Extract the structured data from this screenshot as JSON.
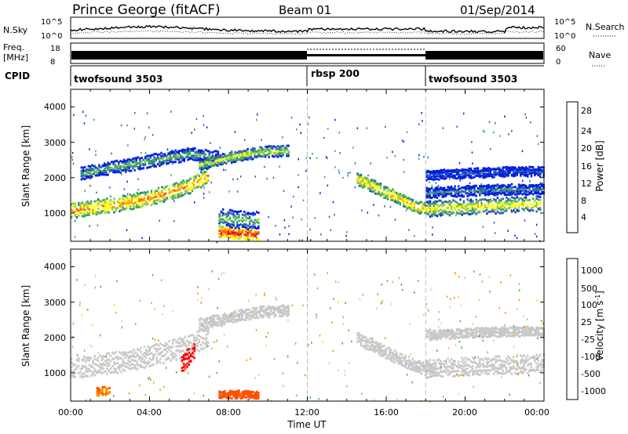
{
  "header": {
    "station": "Prince George (fitACF)",
    "beam": "Beam 01",
    "date": "01/Sep/2014"
  },
  "strips": {
    "nsky_label": "N.Sky",
    "nsky_ticks": [
      "10^5",
      "10^0"
    ],
    "nsearch_label": "N.Search",
    "freq_label_1": "Freq.",
    "freq_label_2": "[MHz]",
    "freq_ticks": [
      "18",
      "8"
    ],
    "nave_label": "Nave",
    "nave_ticks": [
      "60",
      "0"
    ],
    "cpid_label": "CPID"
  },
  "cpid_segments": [
    {
      "name": "twofsound 3503",
      "start_hour": 0,
      "end_hour": 12
    },
    {
      "name": "rbsp 200",
      "start_hour": 12,
      "end_hour": 18
    },
    {
      "name": "twofsound 3503",
      "start_hour": 18,
      "end_hour": 24
    }
  ],
  "axes": {
    "x_label": "Time UT",
    "x_ticks": [
      "00:00",
      "04:00",
      "08:00",
      "12:00",
      "16:00",
      "20:00",
      "00:00"
    ],
    "y_label": "Slant Range [km]",
    "y_ticks": [
      "4000",
      "3000",
      "2000",
      "1000"
    ]
  },
  "power_scale": {
    "label": "Power [dB]",
    "ticks": [
      "28",
      "24",
      "20",
      "16",
      "12",
      "8",
      "4"
    ],
    "colors": [
      "#ff0000",
      "#ff6000",
      "#ffa000",
      "#ffff00",
      "#90d040",
      "#40a060",
      "#3060b0",
      "#0020e0"
    ]
  },
  "velocity_scale": {
    "label": "Velocity [m s^-1]",
    "ticks": [
      "1000",
      "500",
      "100",
      "25",
      "-25",
      "-100",
      "-500",
      "-1000"
    ],
    "colors": [
      "#1e3cc8",
      "#2e8b57",
      "#3cb43c",
      "#90d040",
      "#c8c8c8",
      "#ffd000",
      "#ff9000",
      "#ff5000",
      "#ff0000"
    ]
  },
  "chart_data": [
    {
      "type": "heatmap",
      "title": "Power",
      "x": "Time UT (hours)",
      "xlim": [
        0,
        24
      ],
      "ylabel": "Slant Range [km]",
      "ylim": [
        200,
        4500
      ],
      "zlabel": "Power [dB]",
      "zlim": [
        0,
        30
      ],
      "bands": [
        {
          "t": [
            0,
            2,
            4,
            6,
            7
          ],
          "r": [
            1100,
            1250,
            1450,
            1800,
            2100
          ],
          "dr": 220,
          "p": 22
        },
        {
          "t": [
            0.5,
            2,
            4,
            6,
            7.5
          ],
          "r": [
            2150,
            2300,
            2500,
            2700,
            2600
          ],
          "dr": 180,
          "p": 12
        },
        {
          "t": [
            6.5,
            8,
            9.5,
            11
          ],
          "r": [
            2400,
            2600,
            2750,
            2800
          ],
          "dr": 160,
          "p": 16
        },
        {
          "t": [
            7.5,
            8.5,
            9.5
          ],
          "r": [
            500,
            450,
            420
          ],
          "dr": 160,
          "p": 28
        },
        {
          "t": [
            7.5,
            8.5,
            9.5
          ],
          "r": [
            900,
            850,
            800
          ],
          "dr": 260,
          "p": 12
        },
        {
          "t": [
            14.5,
            16,
            17.5,
            18.5
          ],
          "r": [
            2000,
            1600,
            1200,
            1100
          ],
          "dr": 180,
          "p": 20
        },
        {
          "t": [
            18,
            20,
            22,
            23.8
          ],
          "r": [
            1150,
            1200,
            1250,
            1300
          ],
          "dr": 220,
          "p": 18
        },
        {
          "t": [
            18,
            20,
            22,
            24
          ],
          "r": [
            1600,
            1650,
            1700,
            1700
          ],
          "dr": 150,
          "p": 9
        },
        {
          "t": [
            18,
            20,
            22,
            24
          ],
          "r": [
            2100,
            2150,
            2200,
            2200
          ],
          "dr": 140,
          "p": 6
        }
      ]
    },
    {
      "type": "heatmap",
      "title": "Velocity",
      "x": "Time UT (hours)",
      "xlim": [
        0,
        24
      ],
      "ylabel": "Slant Range [km]",
      "ylim": [
        200,
        4500
      ],
      "zlabel": "Velocity [m s-1]",
      "zlim": [
        -1000,
        1000
      ],
      "bands": [
        {
          "t": [
            0,
            2,
            4,
            6,
            7
          ],
          "r": [
            1150,
            1300,
            1500,
            1800,
            2100
          ],
          "dr": 300,
          "v": 0
        },
        {
          "t": [
            6.5,
            8,
            9.5,
            11
          ],
          "r": [
            2400,
            2600,
            2750,
            2800
          ],
          "dr": 160,
          "v": 0
        },
        {
          "t": [
            14.5,
            16,
            17.5,
            18.5
          ],
          "r": [
            2000,
            1600,
            1200,
            1100
          ],
          "dr": 180,
          "v": 0
        },
        {
          "t": [
            18,
            20,
            22,
            24
          ],
          "r": [
            1150,
            1200,
            1250,
            1300
          ],
          "dr": 260,
          "v": 0
        },
        {
          "t": [
            18,
            20,
            22,
            24
          ],
          "r": [
            2100,
            2150,
            2200,
            2200
          ],
          "dr": 140,
          "v": 0
        },
        {
          "t": [
            7.5,
            8.5,
            9.5
          ],
          "r": [
            400,
            420,
            400
          ],
          "dr": 110,
          "v": -400
        },
        {
          "t": [
            5.6,
            6.0,
            6.3
          ],
          "r": [
            1300,
            1500,
            1700
          ],
          "dr": 250,
          "v": -800
        },
        {
          "t": [
            1.3,
            2.0
          ],
          "r": [
            500,
            520
          ],
          "dr": 120,
          "v": -300
        }
      ]
    }
  ]
}
